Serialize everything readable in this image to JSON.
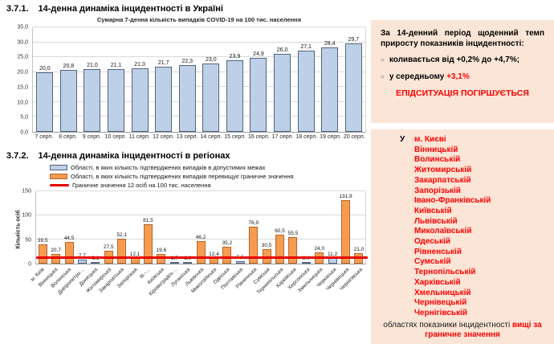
{
  "colors": {
    "page_bg": "#FFFFFF",
    "panel_bg": "#FBE5D6",
    "red": "#FF0000",
    "bar_blue": "#BDD0E8",
    "bar_blue_border": "#53647E",
    "bar_orange": "#F59C51",
    "bar_orange_border": "#B4652A",
    "threshold_red": "#E60000"
  },
  "sections": {
    "s1_number": "3.7.1.",
    "s1_title": "14-денна динаміка інцидентності в Україні",
    "s2_number": "3.7.2.",
    "s2_title": "14-денна динаміка інцидентності в регіонах"
  },
  "chart_data": [
    {
      "type": "bar",
      "title": "Сумарна 7-денна кількість випадків COVID-19 на 100 тис. населення",
      "categories": [
        "7 серп.",
        "8 серп.",
        "9 серп.",
        "10 серп.",
        "11 серп.",
        "12 серп.",
        "13 серп.",
        "14 серп.",
        "15 серп.",
        "16 серп.",
        "17 серп.",
        "18 серп.",
        "19 серп.",
        "20 серп."
      ],
      "values": [
        20.0,
        20.8,
        21.0,
        21.1,
        21.3,
        21.7,
        22.3,
        23.0,
        23.9,
        24.9,
        26.0,
        27.1,
        28.4,
        29.7
      ],
      "labels": [
        "20,0",
        "20,8",
        "21,0",
        "21,1",
        "21,3",
        "21,7",
        "22,3",
        "23,0",
        "23,9",
        "24,9",
        "26,0",
        "27,1",
        "28,4",
        "29,7"
      ],
      "ylim": [
        0,
        35
      ],
      "yticks": [
        "0,0",
        "5,0",
        "10,0",
        "15,0",
        "20,0",
        "25,0",
        "30,0",
        "35,0"
      ],
      "grid": true,
      "bar_color": "blue",
      "legend_position": "none"
    },
    {
      "type": "bar",
      "ylabel": "Кількість осіб",
      "categories": [
        "м. Київ",
        "Вінницька",
        "Волинська",
        "Дніпропетро…",
        "Донецька",
        "Житомирська",
        "Закарпатська",
        "Запорізька",
        "Ів.-…",
        "Київська",
        "Кіровоградсь…",
        "Луганська",
        "Львівська",
        "Миколаївська",
        "Одеська",
        "Полтавська",
        "Рівненська",
        "Сумська",
        "Тернопільська",
        "Харківська",
        "Херсонська",
        "Хмельницька",
        "Черкаська",
        "Чернівецька",
        "Чернігівська"
      ],
      "values": [
        39.5,
        20.7,
        44.5,
        7.7,
        3.1,
        27.5,
        52.1,
        12.1,
        81.5,
        19.6,
        1.7,
        1.6,
        46.2,
        12.4,
        35.2,
        5.6,
        76.9,
        30.5,
        60.5,
        55.5,
        3.4,
        24.0,
        11.2,
        131.9,
        21.0
      ],
      "labels": [
        "39,5",
        "20,7",
        "44,5",
        "7,7",
        "3,1",
        "27,5",
        "52,1",
        "12,1",
        "81,5",
        "19,6",
        "1,7",
        "1,6",
        "46,2",
        "12,4",
        "35,2",
        "5,6",
        "76,9",
        "30,5",
        "60,5",
        "55,5",
        "3,4",
        "24,0",
        "11,2",
        "131,9",
        "21,0"
      ],
      "bar_colors": [
        "orange",
        "orange",
        "orange",
        "blue",
        "blue",
        "orange",
        "orange",
        "orange",
        "orange",
        "orange",
        "blue",
        "blue",
        "orange",
        "orange",
        "orange",
        "blue",
        "orange",
        "orange",
        "orange",
        "orange",
        "blue",
        "orange",
        "blue",
        "orange",
        "orange"
      ],
      "threshold": 12,
      "ylim": [
        0,
        150
      ],
      "yticks": [
        "0",
        "50",
        "100",
        "150"
      ],
      "grid": true,
      "legend_position": "top",
      "legend": [
        {
          "swatch": "blue",
          "label": "Області, в яких кількість підтверджених випадків в допустимих межах"
        },
        {
          "swatch": "orange",
          "label": "Області, в яких кількість підтверджених випадків перевищує граничне значення"
        },
        {
          "swatch": "line",
          "label": "Граничне значення 12 осіб на 100 тис. населення"
        }
      ]
    }
  ],
  "panel1": {
    "intro": "За 14-денний період щоденний темп приросту показників інцидентності:",
    "bullets": [
      {
        "text": "коливається від +0,2% до +4,7%;",
        "highlight": ""
      },
      {
        "text": "у середньому ",
        "highlight": "+3,1%"
      }
    ],
    "warning": "ЕПІДСИТУАЦІЯ ПОГІРШУЄТЬСЯ"
  },
  "panel2": {
    "prefix": "У",
    "regions": [
      "м. Києві",
      "Вінницькій",
      "Волинській",
      "Житомирській",
      "Закарпатській",
      "Запорізькій",
      "Івано-Франківській",
      "Київській",
      "Львівській",
      "Миколаївській",
      "Одеській",
      "Рівненській",
      "Сумській",
      "Тернопільській",
      "Харківській",
      "Хмельницькій",
      "Чернівецькій",
      "Чернігівській"
    ],
    "footer_black": "областях показники інцидентності ",
    "footer_red": "вищі за граничне значення"
  },
  "misc": {
    "bullet_char": "○"
  }
}
